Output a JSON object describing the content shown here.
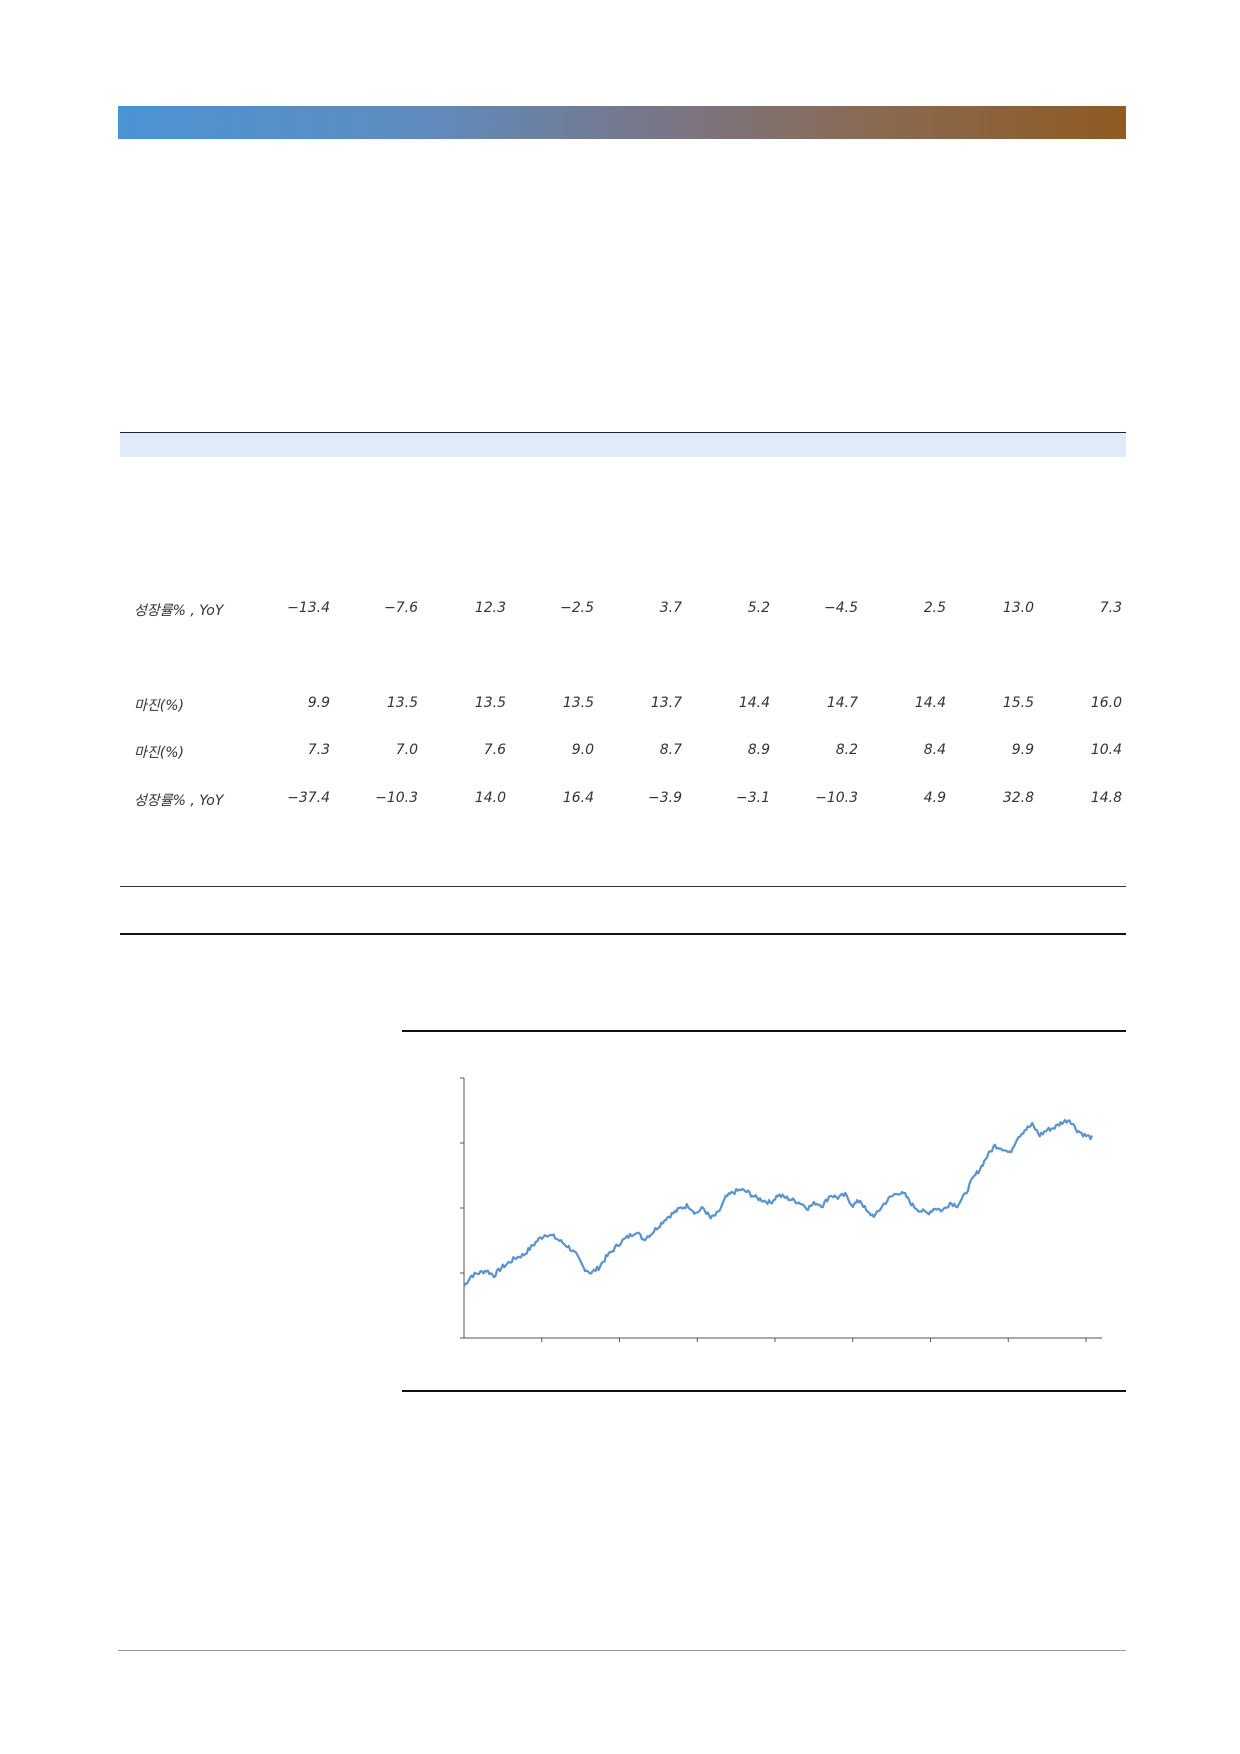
{
  "table": {
    "rows": [
      {
        "label": "성장률% , YoY",
        "values": [
          "−13.4",
          "−7.6",
          "12.3",
          "−2.5",
          "3.7",
          "5.2",
          "−4.5",
          "2.5",
          "13.0",
          "7.3"
        ]
      },
      {
        "label": "마진(%)",
        "values": [
          "9.9",
          "13.5",
          "13.5",
          "13.5",
          "13.7",
          "14.4",
          "14.7",
          "14.4",
          "15.5",
          "16.0"
        ]
      },
      {
        "label": "마진(%)",
        "values": [
          "7.3",
          "7.0",
          "7.6",
          "9.0",
          "8.7",
          "8.9",
          "8.2",
          "8.4",
          "9.9",
          "10.4"
        ]
      },
      {
        "label": "성장률% , YoY",
        "values": [
          "−37.4",
          "−10.3",
          "14.0",
          "16.4",
          "−3.9",
          "−3.1",
          "−10.3",
          "4.9",
          "32.8",
          "14.8"
        ]
      }
    ]
  },
  "chart_data": {
    "type": "line",
    "title": "",
    "xlabel": "",
    "ylabel": "",
    "grid": false,
    "color": "#5b93cc",
    "y_tick_count": 4,
    "x_tick_count": 8,
    "series": [
      {
        "values": [
          0.2,
          0.24,
          0.25,
          0.26,
          0.24,
          0.27,
          0.29,
          0.31,
          0.32,
          0.35,
          0.38,
          0.4,
          0.39,
          0.37,
          0.35,
          0.32,
          0.27,
          0.25,
          0.27,
          0.31,
          0.34,
          0.37,
          0.39,
          0.41,
          0.38,
          0.4,
          0.43,
          0.46,
          0.48,
          0.5,
          0.51,
          0.48,
          0.5,
          0.46,
          0.48,
          0.54,
          0.56,
          0.57,
          0.56,
          0.54,
          0.53,
          0.52,
          0.55,
          0.54,
          0.53,
          0.52,
          0.5,
          0.52,
          0.51,
          0.55,
          0.54,
          0.55,
          0.51,
          0.53,
          0.48,
          0.47,
          0.51,
          0.54,
          0.56,
          0.55,
          0.51,
          0.49,
          0.48,
          0.5,
          0.49,
          0.52,
          0.51,
          0.55,
          0.61,
          0.65,
          0.7,
          0.74,
          0.73,
          0.71,
          0.77,
          0.8,
          0.82,
          0.78,
          0.8,
          0.81,
          0.83,
          0.84,
          0.8,
          0.78,
          0.77
        ]
      }
    ]
  }
}
